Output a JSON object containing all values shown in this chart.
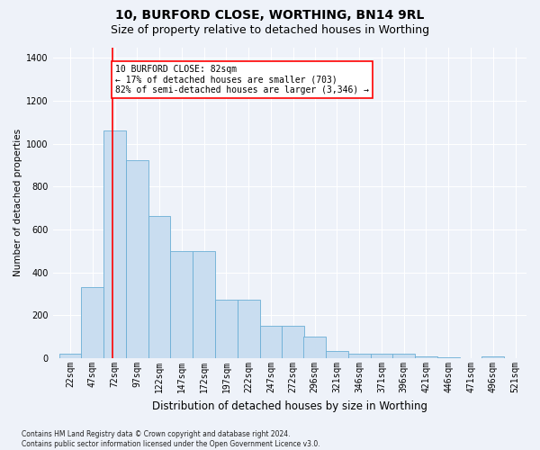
{
  "title1": "10, BURFORD CLOSE, WORTHING, BN14 9RL",
  "title2": "Size of property relative to detached houses in Worthing",
  "xlabel": "Distribution of detached houses by size in Worthing",
  "ylabel": "Number of detached properties",
  "footnote": "Contains HM Land Registry data © Crown copyright and database right 2024.\nContains public sector information licensed under the Open Government Licence v3.0.",
  "bin_labels": [
    "22sqm",
    "47sqm",
    "72sqm",
    "97sqm",
    "122sqm",
    "147sqm",
    "172sqm",
    "197sqm",
    "222sqm",
    "247sqm",
    "272sqm",
    "296sqm",
    "321sqm",
    "346sqm",
    "371sqm",
    "396sqm",
    "421sqm",
    "446sqm",
    "471sqm",
    "496sqm",
    "521sqm"
  ],
  "bar_values": [
    20,
    330,
    1060,
    925,
    665,
    500,
    500,
    275,
    275,
    150,
    150,
    100,
    35,
    20,
    20,
    20,
    10,
    5,
    0,
    10,
    0
  ],
  "bar_color": "#c9ddf0",
  "bar_edge_color": "#6aaed6",
  "annotation_text_line1": "10 BURFORD CLOSE: 82sqm",
  "annotation_text_line2": "← 17% of detached houses are smaller (703)",
  "annotation_text_line3": "82% of semi-detached houses are larger (3,346) →",
  "annotation_box_color": "white",
  "annotation_box_edge": "red",
  "red_line_color": "red",
  "ylim": [
    0,
    1450
  ],
  "yticks": [
    0,
    200,
    400,
    600,
    800,
    1000,
    1200,
    1400
  ],
  "bg_color": "#eef2f9",
  "grid_color": "white",
  "title1_fontsize": 10,
  "title2_fontsize": 9,
  "xlabel_fontsize": 8.5,
  "ylabel_fontsize": 7.5,
  "tick_fontsize": 7,
  "annot_fontsize": 7,
  "footnote_fontsize": 5.5
}
